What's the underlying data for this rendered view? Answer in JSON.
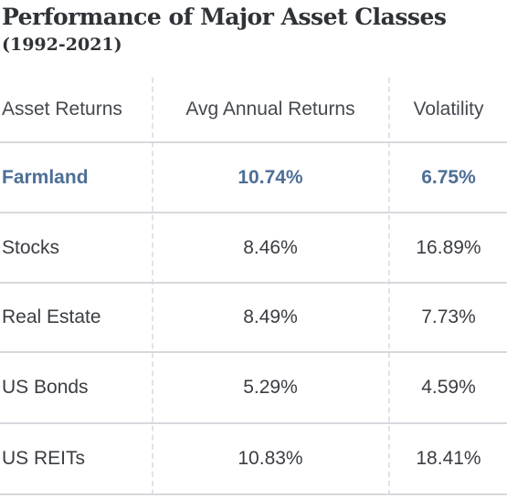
{
  "title": "Performance of Major Asset Classes",
  "subtitle": "(1992-2021)",
  "columns": [
    "Asset Returns",
    "Avg Annual Returns",
    "Volatility"
  ],
  "rows": [
    {
      "asset": "Farmland",
      "avg_return": "10.74%",
      "volatility": "6.75%",
      "highlighted": true
    },
    {
      "asset": "Stocks",
      "avg_return": "8.46%",
      "volatility": "16.89%",
      "highlighted": false
    },
    {
      "asset": "Real Estate",
      "avg_return": "8.49%",
      "volatility": "7.73%",
      "highlighted": false
    },
    {
      "asset": "US Bonds",
      "avg_return": "5.29%",
      "volatility": "4.59%",
      "highlighted": false
    },
    {
      "asset": "US REITs",
      "avg_return": "10.83%",
      "volatility": "18.41%",
      "highlighted": false
    }
  ],
  "colors": {
    "highlight": "#4d6f96",
    "text": "#3a3d42",
    "rule": "#d6d9dd"
  }
}
